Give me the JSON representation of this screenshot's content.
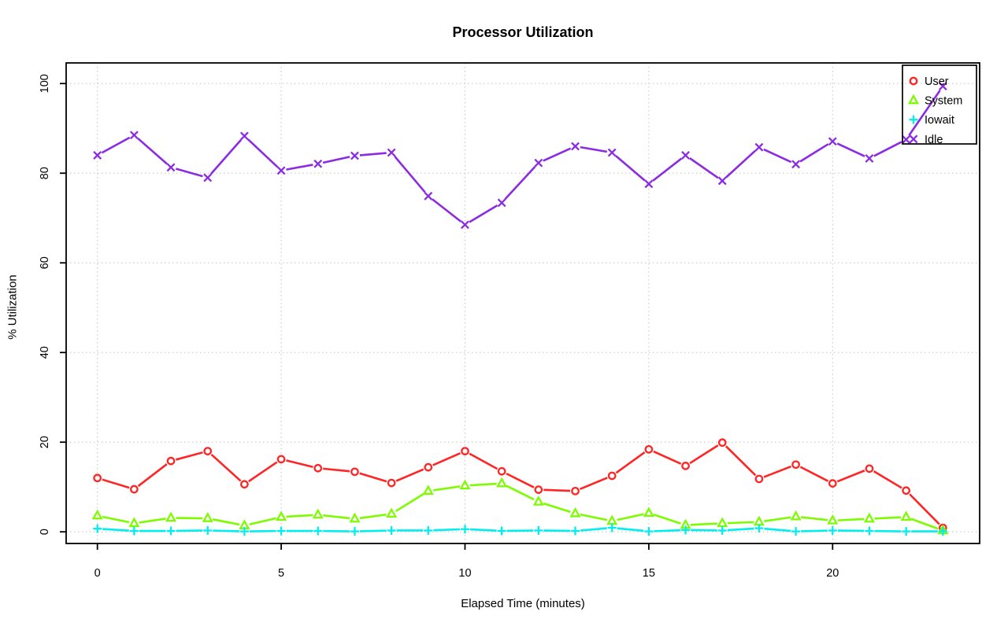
{
  "chart": {
    "title": "Processor Utilization",
    "xlabel": "Elapsed Time (minutes)",
    "ylabel": "% Utilization"
  },
  "chart_data": {
    "type": "line",
    "title": "Processor Utilization",
    "xlabel": "Elapsed Time (minutes)",
    "ylabel": "% Utilization",
    "x": [
      0,
      1,
      2,
      3,
      4,
      5,
      6,
      7,
      8,
      9,
      10,
      11,
      12,
      13,
      14,
      15,
      16,
      17,
      18,
      19,
      20,
      21,
      22,
      23
    ],
    "series": [
      {
        "name": "User",
        "marker": "circle",
        "color": "#ff2525",
        "values": [
          12.0,
          9.5,
          15.8,
          18.0,
          10.6,
          16.2,
          14.2,
          13.4,
          10.9,
          14.4,
          18.0,
          13.5,
          9.4,
          9.1,
          12.5,
          18.4,
          14.7,
          19.9,
          11.8,
          15.0,
          10.8,
          14.1,
          9.2,
          0.9
        ]
      },
      {
        "name": "System",
        "marker": "triangle",
        "color": "#7dfc00",
        "values": [
          3.6,
          1.9,
          3.1,
          3.0,
          1.4,
          3.3,
          3.8,
          2.9,
          4.0,
          9.1,
          10.3,
          10.8,
          6.7,
          4.1,
          2.4,
          4.2,
          1.5,
          1.9,
          2.2,
          3.4,
          2.5,
          2.9,
          3.3,
          0.3
        ]
      },
      {
        "name": "Iowait",
        "marker": "plus",
        "color": "#00eeee",
        "values": [
          0.7,
          0.2,
          0.2,
          0.3,
          0.1,
          0.2,
          0.2,
          0.1,
          0.3,
          0.3,
          0.6,
          0.2,
          0.3,
          0.2,
          0.9,
          0.1,
          0.4,
          0.3,
          0.8,
          0.1,
          0.3,
          0.2,
          0.1,
          0.1
        ]
      },
      {
        "name": "Idle",
        "marker": "x",
        "color": "#8b2be2",
        "values": [
          84.0,
          88.5,
          81.3,
          79.0,
          88.3,
          80.6,
          82.1,
          83.9,
          84.6,
          74.9,
          68.5,
          73.4,
          82.3,
          86.0,
          84.6,
          77.6,
          84.0,
          78.3,
          85.8,
          82.0,
          87.1,
          83.3,
          87.5,
          99.4
        ]
      }
    ],
    "x_ticks": [
      0,
      5,
      10,
      15,
      20
    ],
    "y_ticks": [
      0,
      20,
      40,
      60,
      80,
      100
    ],
    "xlim": [
      -0.85,
      24.0
    ],
    "ylim": [
      -2.6,
      104.6
    ],
    "grid": true,
    "grid_color": "#c9c9c9",
    "axis_color": "#000000",
    "legend_position": "top-right",
    "legend": [
      "User",
      "System",
      "Iowait",
      "Idle"
    ]
  }
}
